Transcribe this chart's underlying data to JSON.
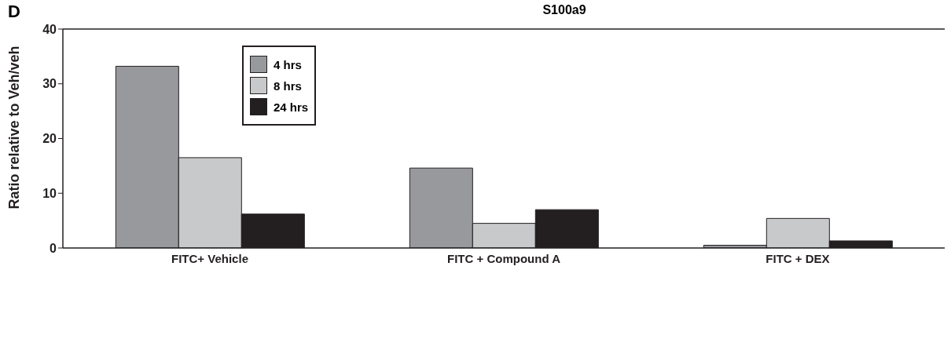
{
  "chart_data": {
    "type": "bar",
    "title": "S100a9",
    "ylabel": "Ratio relative to Veh/veh",
    "annotations": [
      "D"
    ],
    "categories": [
      "FITC+ Vehicle",
      "FITC + Compound A",
      "FITC + DEX"
    ],
    "series": [
      {
        "name": "4 hrs",
        "color": "#98999d",
        "values": [
          33.2,
          14.6,
          0.5
        ]
      },
      {
        "name": "8 hrs",
        "color": "#c8c9cb",
        "values": [
          16.5,
          4.5,
          5.4
        ]
      },
      {
        "name": "24 hrs",
        "color": "#231f20",
        "values": [
          6.2,
          7.0,
          1.3
        ]
      }
    ],
    "ylim": [
      0,
      40
    ],
    "yticks": [
      0,
      10,
      20,
      30,
      40
    ],
    "grid": false,
    "legend": "top left"
  }
}
